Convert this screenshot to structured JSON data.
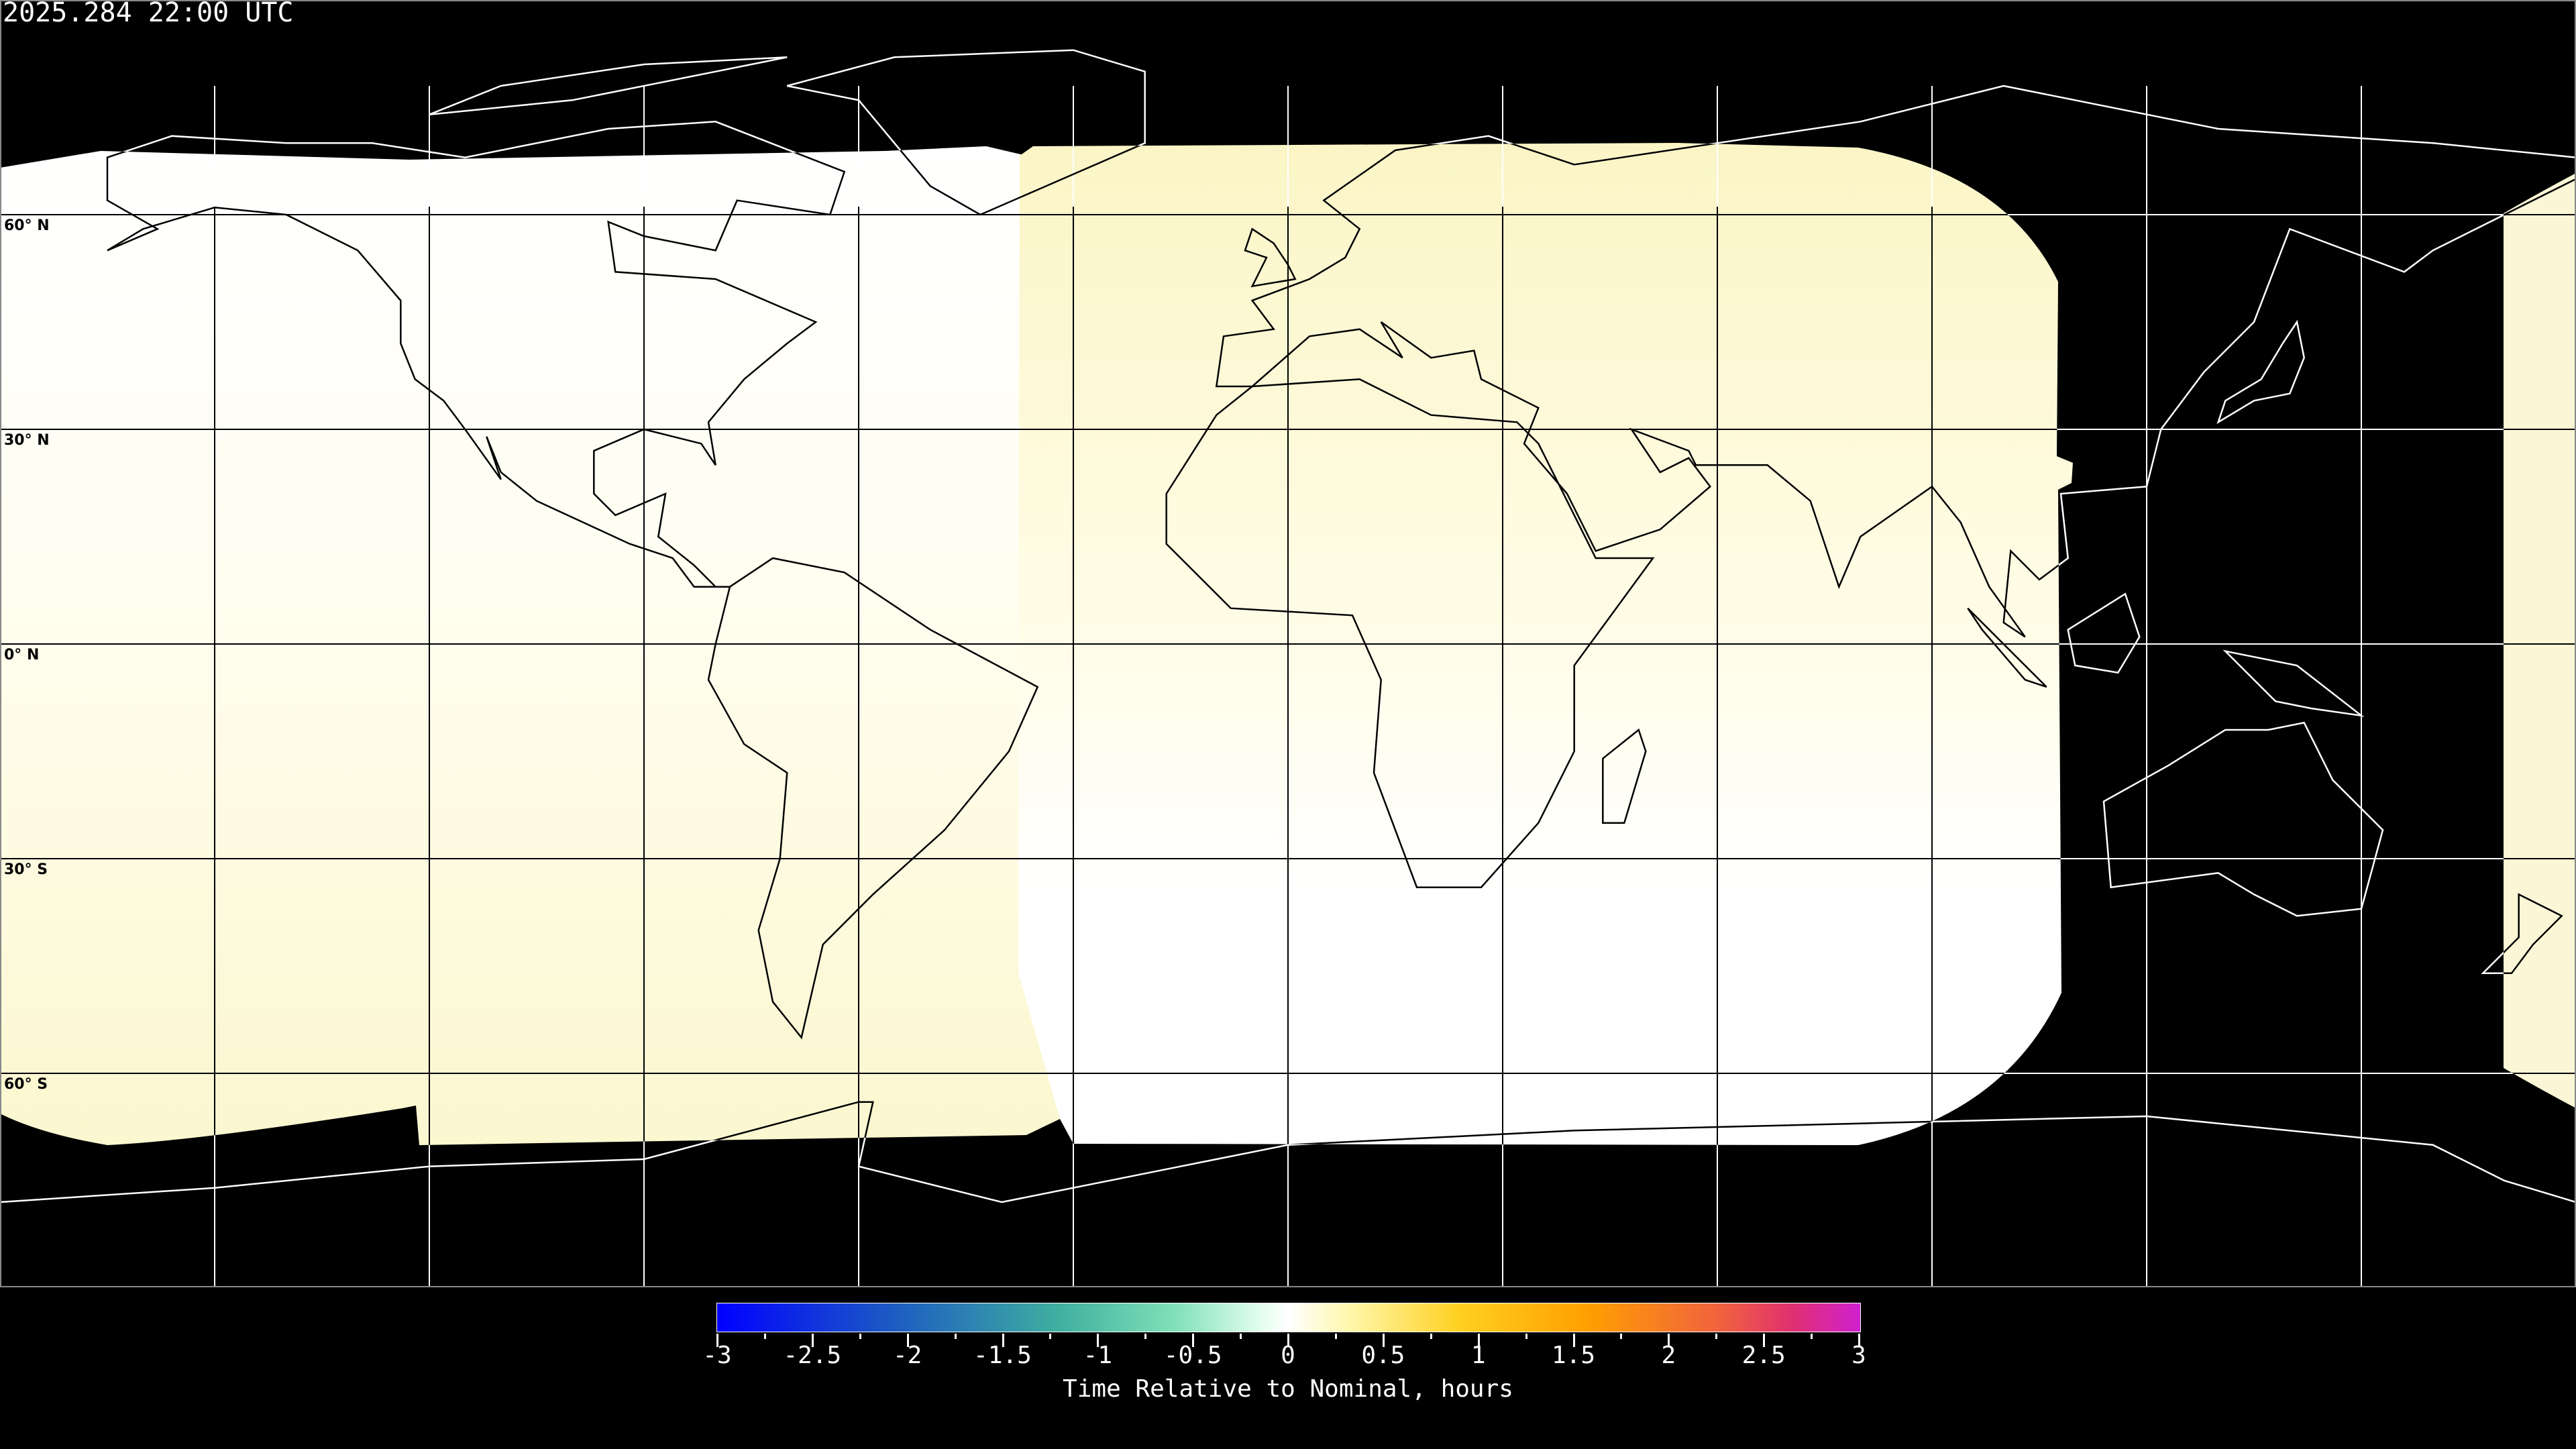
{
  "header": {
    "timestamp": "2025.284 22:00 UTC"
  },
  "map": {
    "projection": "equirectangular",
    "gridline_spacing_degrees": 30,
    "lat_labels": [
      "60° N",
      "30° N",
      "0° N",
      "30° S",
      "60° S"
    ],
    "background_color": "#000000",
    "swath_colors": {
      "near_zero": "#ffffff",
      "slightly_late": "#fbf6c8"
    }
  },
  "colorbar": {
    "label": "Time Relative to Nominal, hours",
    "range": [
      -3,
      3
    ],
    "ticks": [
      "-3",
      "-2.5",
      "-2",
      "-1.5",
      "-1",
      "-0.5",
      "0",
      "0.5",
      "1",
      "1.5",
      "2",
      "2.5",
      "3"
    ],
    "colors": [
      "#0000ff",
      "#40b0a0",
      "#ffffff",
      "#ffd020",
      "#ffa000",
      "#d020d0"
    ]
  }
}
